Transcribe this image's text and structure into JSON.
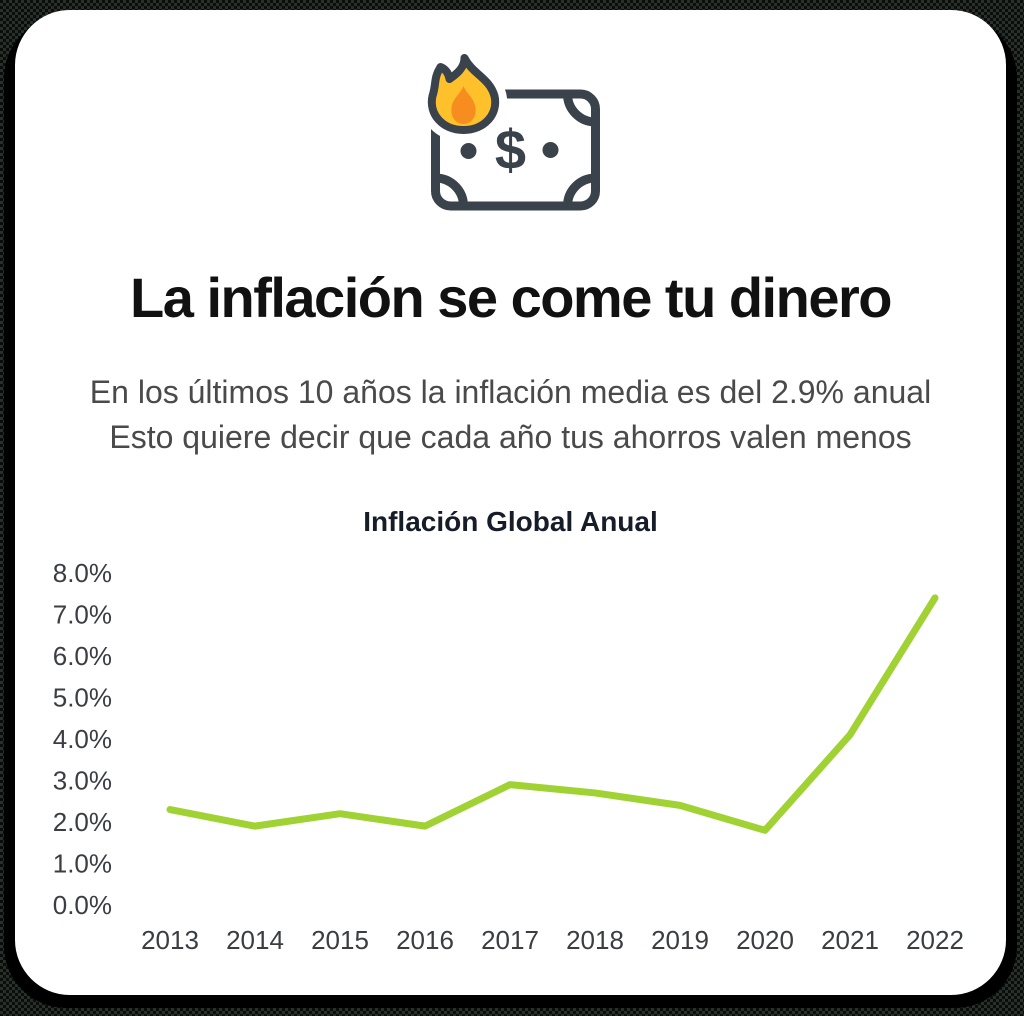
{
  "header": {
    "title": "La inflación se come tu dinero",
    "subtitle_line1": "En los últimos 10 años la inflación media es del 2.9% anual",
    "subtitle_line2": "Esto quiere decir que cada año tus ahorros valen menos"
  },
  "icon": {
    "name": "burning-money-icon",
    "dollar_glyph": "$"
  },
  "chart_data": {
    "type": "line",
    "title": "Inflación Global Anual",
    "categories": [
      "2013",
      "2014",
      "2015",
      "2016",
      "2017",
      "2018",
      "2019",
      "2020",
      "2021",
      "2022"
    ],
    "series": [
      {
        "name": "Inflación global anual (%)",
        "values": [
          2.3,
          1.9,
          2.2,
          1.9,
          2.9,
          2.7,
          2.4,
          1.8,
          4.1,
          7.4
        ]
      }
    ],
    "xlabel": "",
    "ylabel": "",
    "ylim": [
      0,
      8
    ],
    "ytick_step": 1.0,
    "yticks": [
      "0.0%",
      "1.0%",
      "2.0%",
      "3.0%",
      "4.0%",
      "5.0%",
      "6.0%",
      "7.0%",
      "8.0%"
    ],
    "grid": false,
    "legend_position": "none",
    "line_color": "#a0d233"
  },
  "colors": {
    "accent_green": "#a0d233",
    "title_text": "#111111",
    "subtitle_text": "#4a4a4a",
    "chart_title_text": "#161d29",
    "axis_text": "#3a3d42",
    "card_background": "#ffffff",
    "card_shadow": "#000000",
    "icon_outline": "#3a424b",
    "flame_yellow": "#ffc12b",
    "flame_orange": "#f68d1e"
  }
}
